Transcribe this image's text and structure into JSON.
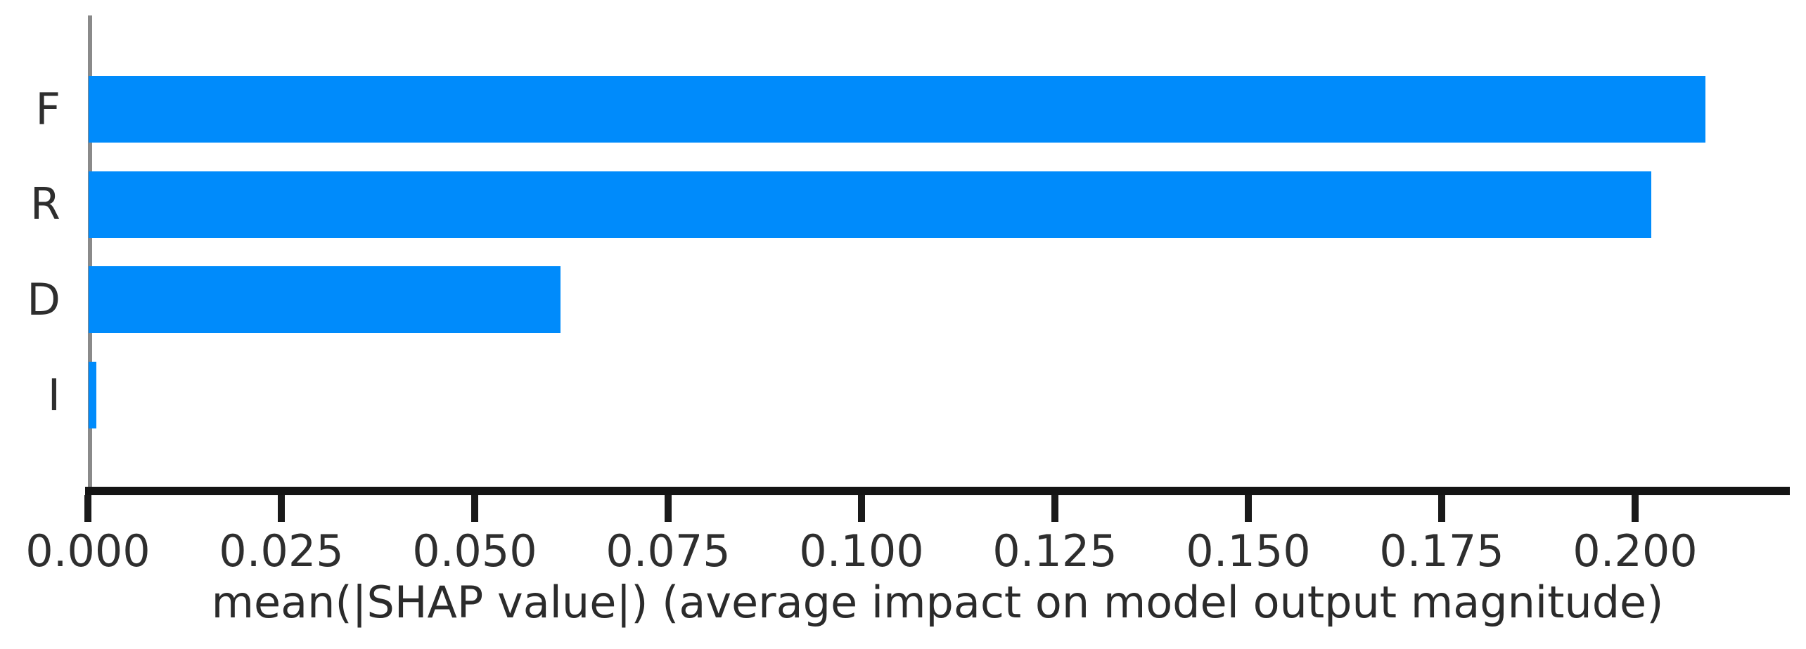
{
  "chart_data": {
    "type": "bar",
    "orientation": "horizontal",
    "title": "",
    "xlabel": "mean(|SHAP value|) (average impact on model output magnitude)",
    "ylabel": "",
    "categories": [
      "F",
      "R",
      "D",
      "I"
    ],
    "values": [
      0.209,
      0.202,
      0.061,
      0.001
    ],
    "xlim": [
      0,
      0.22
    ],
    "xticks": [
      0.0,
      0.025,
      0.05,
      0.075,
      0.1,
      0.125,
      0.15,
      0.175,
      0.2
    ],
    "xtick_labels": [
      "0.000",
      "0.025",
      "0.050",
      "0.075",
      "0.100",
      "0.125",
      "0.150",
      "0.175",
      "0.200"
    ],
    "grid": "off",
    "legend": "none",
    "bar_color": "#008bfb",
    "axis_line_color": "#141414",
    "spine_color": "#8a8a8a",
    "text_color": "#2e2e2e"
  }
}
